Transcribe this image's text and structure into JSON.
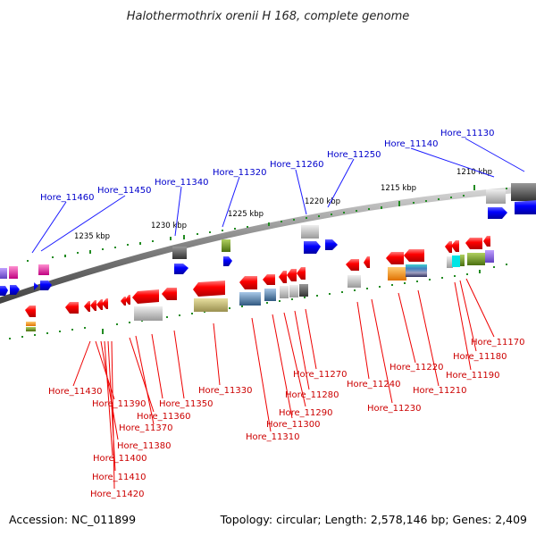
{
  "title": "Halothermothrix orenii H 168, complete genome",
  "footer": {
    "accession": "Accession: NC_011899",
    "topology": "Topology: circular; Length: 2,578,146 bp; Genes: 2,409"
  },
  "scale_labels": [
    "1235 kbp",
    "1230 kbp",
    "1225 kbp",
    "1220 kbp",
    "1215 kbp",
    "1210 kbp"
  ],
  "forward_genes": [
    "Hore_11460",
    "Hore_11450",
    "Hore_11340",
    "Hore_11320",
    "Hore_11260",
    "Hore_11250",
    "Hore_11140",
    "Hore_11130"
  ],
  "reverse_genes": [
    "Hore_11430",
    "Hore_11390",
    "Hore_11360",
    "Hore_11350",
    "Hore_11370",
    "Hore_11380",
    "Hore_11400",
    "Hore_11410",
    "Hore_11420",
    "Hore_11330",
    "Hore_11310",
    "Hore_11300",
    "Hore_11290",
    "Hore_11280",
    "Hore_11270",
    "Hore_11240",
    "Hore_11230",
    "Hore_11220",
    "Hore_11210",
    "Hore_11190",
    "Hore_11180",
    "Hore_11170"
  ],
  "colors": {
    "forward_strand": "#0000ee",
    "reverse_strand": "#ee0000",
    "backbone": "#777777",
    "tick": "#228b22"
  }
}
